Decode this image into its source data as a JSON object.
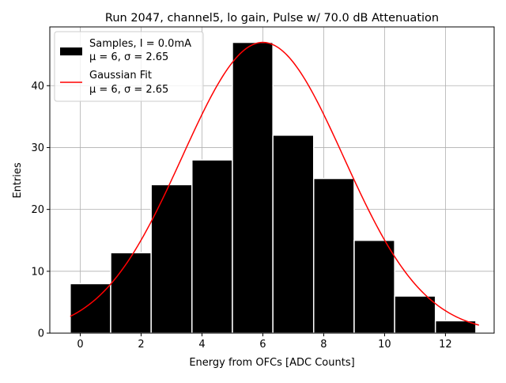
{
  "chart_data": {
    "type": "bar",
    "title": "Run 2047, channel5, lo gain, Pulse w/ 70.0 dB Attenuation",
    "xlabel": "Energy from OFCs [ADC Counts]",
    "ylabel": "Entries",
    "xlim": [
      -1.0,
      13.6
    ],
    "ylim": [
      0,
      49.5
    ],
    "grid": true,
    "legend_position": "top-left",
    "xticks": [
      "0",
      "2",
      "4",
      "6",
      "8",
      "10",
      "12"
    ],
    "xtick_values": [
      0,
      2,
      4,
      6,
      8,
      10,
      12
    ],
    "yticks": [
      "0",
      "10",
      "20",
      "30",
      "40"
    ],
    "ytick_values": [
      0,
      10,
      20,
      30,
      40
    ],
    "bin_edges": [
      -0.33,
      1.0,
      2.33,
      3.67,
      5.0,
      6.33,
      7.67,
      9.0,
      10.33,
      11.67,
      13.0
    ],
    "series": [
      {
        "name": "Samples, I = 0.0mA",
        "stats": "μ = 6, σ = 2.65",
        "kind": "histogram",
        "color": "#000000",
        "edgecolor": "#ffffff",
        "values": [
          8,
          13,
          24,
          28,
          47,
          32,
          25,
          15,
          6,
          2
        ]
      },
      {
        "name": "Gaussian Fit",
        "stats": "μ = 6, σ = 2.65",
        "kind": "line",
        "color": "#ff0000",
        "amplitude": 47,
        "mean": 6,
        "sigma": 2.65,
        "x_range": [
          -0.33,
          13.1
        ]
      }
    ]
  }
}
